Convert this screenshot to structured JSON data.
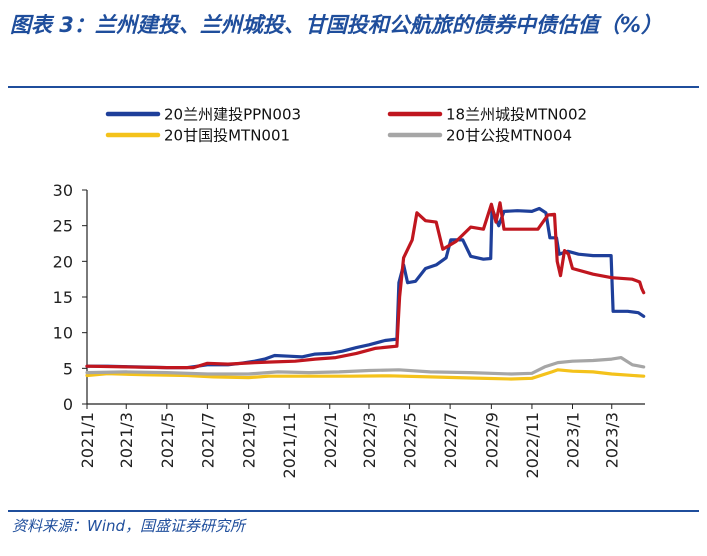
{
  "figure": {
    "title": "图表 3：兰州建投、兰州城投、甘国投和公航旅的债券中债估值（%）",
    "source": "资料来源：Wind，国盛证券研究所"
  },
  "chart_data": {
    "type": "line",
    "title": "",
    "xlabel": "",
    "ylabel": "",
    "ylim": [
      0,
      30
    ],
    "yticks": [
      0,
      5,
      10,
      15,
      20,
      25,
      30
    ],
    "xlim": [
      "2021-01-01",
      "2023-04-20"
    ],
    "xtick_labels": [
      "2021/1",
      "2021/3",
      "2021/5",
      "2021/7",
      "2021/9",
      "2021/11",
      "2022/1",
      "2022/3",
      "2022/5",
      "2022/7",
      "2022/9",
      "2022/11",
      "2023/1",
      "2023/3"
    ],
    "xtick_dates": [
      "2021-01-01",
      "2021-03-01",
      "2021-05-01",
      "2021-07-01",
      "2021-09-01",
      "2021-11-01",
      "2022-01-01",
      "2022-03-01",
      "2022-05-01",
      "2022-07-01",
      "2022-09-01",
      "2022-11-01",
      "2023-01-01",
      "2023-03-01"
    ],
    "grid": false,
    "legend_position": "top",
    "series": [
      {
        "name": "20兰州建投PPN003",
        "color": "#1e3f9a",
        "points": [
          [
            "2021-01-01",
            5.3
          ],
          [
            "2021-02-01",
            5.3
          ],
          [
            "2021-03-15",
            5.2
          ],
          [
            "2021-05-01",
            5.1
          ],
          [
            "2021-06-01",
            5.1
          ],
          [
            "2021-07-01",
            5.5
          ],
          [
            "2021-08-01",
            5.5
          ],
          [
            "2021-08-20",
            5.7
          ],
          [
            "2021-09-10",
            6.0
          ],
          [
            "2021-09-25",
            6.3
          ],
          [
            "2021-10-10",
            6.8
          ],
          [
            "2021-11-01",
            6.7
          ],
          [
            "2021-11-20",
            6.6
          ],
          [
            "2021-12-10",
            7.0
          ],
          [
            "2022-01-01",
            7.1
          ],
          [
            "2022-01-20",
            7.4
          ],
          [
            "2022-02-10",
            7.9
          ],
          [
            "2022-03-01",
            8.3
          ],
          [
            "2022-03-25",
            8.9
          ],
          [
            "2022-04-12",
            9.1
          ],
          [
            "2022-04-15",
            17.0
          ],
          [
            "2022-04-22",
            19.5
          ],
          [
            "2022-04-28",
            17.0
          ],
          [
            "2022-05-10",
            17.2
          ],
          [
            "2022-05-25",
            19.0
          ],
          [
            "2022-06-10",
            19.5
          ],
          [
            "2022-06-25",
            20.5
          ],
          [
            "2022-07-02",
            23.0
          ],
          [
            "2022-07-20",
            23.0
          ],
          [
            "2022-08-01",
            20.7
          ],
          [
            "2022-08-20",
            20.3
          ],
          [
            "2022-08-31",
            20.4
          ],
          [
            "2022-09-02",
            27.4
          ],
          [
            "2022-09-12",
            25.0
          ],
          [
            "2022-09-20",
            27.0
          ],
          [
            "2022-10-10",
            27.1
          ],
          [
            "2022-11-01",
            27.0
          ],
          [
            "2022-11-12",
            27.4
          ],
          [
            "2022-11-22",
            26.8
          ],
          [
            "2022-11-28",
            23.3
          ],
          [
            "2022-12-08",
            23.3
          ],
          [
            "2022-12-12",
            21.0
          ],
          [
            "2022-12-25",
            21.4
          ],
          [
            "2023-01-10",
            21.0
          ],
          [
            "2023-02-01",
            20.8
          ],
          [
            "2023-02-28",
            20.8
          ],
          [
            "2023-03-03",
            13.0
          ],
          [
            "2023-03-25",
            13.0
          ],
          [
            "2023-04-10",
            12.8
          ],
          [
            "2023-04-18",
            12.3
          ]
        ]
      },
      {
        "name": "18兰州城投MTN002",
        "color": "#c0161f",
        "points": [
          [
            "2021-01-01",
            5.3
          ],
          [
            "2021-03-01",
            5.2
          ],
          [
            "2021-05-01",
            5.1
          ],
          [
            "2021-06-10",
            5.1
          ],
          [
            "2021-07-01",
            5.7
          ],
          [
            "2021-08-01",
            5.6
          ],
          [
            "2021-09-10",
            5.8
          ],
          [
            "2021-10-10",
            5.9
          ],
          [
            "2021-11-10",
            6.0
          ],
          [
            "2021-12-10",
            6.3
          ],
          [
            "2022-01-10",
            6.5
          ],
          [
            "2022-02-10",
            7.1
          ],
          [
            "2022-03-10",
            7.8
          ],
          [
            "2022-04-01",
            8.0
          ],
          [
            "2022-04-12",
            8.1
          ],
          [
            "2022-04-16",
            15.0
          ],
          [
            "2022-04-22",
            20.5
          ],
          [
            "2022-05-05",
            23.0
          ],
          [
            "2022-05-12",
            26.8
          ],
          [
            "2022-05-25",
            25.7
          ],
          [
            "2022-06-10",
            25.5
          ],
          [
            "2022-06-20",
            21.7
          ],
          [
            "2022-07-10",
            22.8
          ],
          [
            "2022-08-01",
            24.8
          ],
          [
            "2022-08-20",
            24.5
          ],
          [
            "2022-09-01",
            28.0
          ],
          [
            "2022-09-08",
            25.5
          ],
          [
            "2022-09-14",
            28.2
          ],
          [
            "2022-09-20",
            24.5
          ],
          [
            "2022-10-20",
            24.5
          ],
          [
            "2022-11-10",
            24.5
          ],
          [
            "2022-11-25",
            26.5
          ],
          [
            "2022-12-05",
            26.6
          ],
          [
            "2022-12-09",
            20.0
          ],
          [
            "2022-12-14",
            18.0
          ],
          [
            "2022-12-20",
            21.5
          ],
          [
            "2022-12-26",
            21.0
          ],
          [
            "2023-01-01",
            19.0
          ],
          [
            "2023-02-01",
            18.2
          ],
          [
            "2023-03-01",
            17.7
          ],
          [
            "2023-04-01",
            17.5
          ],
          [
            "2023-04-12",
            17.1
          ],
          [
            "2023-04-15",
            16.2
          ],
          [
            "2023-04-18",
            15.6
          ]
        ]
      },
      {
        "name": "20甘国投MTN001",
        "color": "#f4c21b",
        "points": [
          [
            "2021-01-01",
            4.0
          ],
          [
            "2021-02-01",
            4.25
          ],
          [
            "2021-04-01",
            4.1
          ],
          [
            "2021-06-01",
            4.0
          ],
          [
            "2021-07-10",
            3.8
          ],
          [
            "2021-09-01",
            3.7
          ],
          [
            "2021-10-01",
            3.9
          ],
          [
            "2021-12-01",
            3.9
          ],
          [
            "2022-02-01",
            3.9
          ],
          [
            "2022-04-01",
            3.95
          ],
          [
            "2022-06-01",
            3.8
          ],
          [
            "2022-08-01",
            3.65
          ],
          [
            "2022-10-01",
            3.5
          ],
          [
            "2022-11-01",
            3.6
          ],
          [
            "2022-12-01",
            4.5
          ],
          [
            "2022-12-10",
            4.8
          ],
          [
            "2023-01-01",
            4.6
          ],
          [
            "2023-02-01",
            4.5
          ],
          [
            "2023-03-01",
            4.2
          ],
          [
            "2023-04-18",
            3.9
          ]
        ]
      },
      {
        "name": "20甘公投MTN004",
        "color": "#a6a6a6",
        "points": [
          [
            "2021-01-01",
            4.4
          ],
          [
            "2021-03-01",
            4.5
          ],
          [
            "2021-05-01",
            4.4
          ],
          [
            "2021-07-01",
            4.2
          ],
          [
            "2021-09-01",
            4.2
          ],
          [
            "2021-10-15",
            4.5
          ],
          [
            "2021-12-01",
            4.4
          ],
          [
            "2022-01-15",
            4.5
          ],
          [
            "2022-03-01",
            4.7
          ],
          [
            "2022-04-15",
            4.8
          ],
          [
            "2022-06-01",
            4.5
          ],
          [
            "2022-08-01",
            4.4
          ],
          [
            "2022-10-01",
            4.2
          ],
          [
            "2022-11-01",
            4.3
          ],
          [
            "2022-11-20",
            5.2
          ],
          [
            "2022-12-10",
            5.8
          ],
          [
            "2023-01-01",
            6.0
          ],
          [
            "2023-02-01",
            6.1
          ],
          [
            "2023-03-01",
            6.3
          ],
          [
            "2023-03-15",
            6.5
          ],
          [
            "2023-04-01",
            5.5
          ],
          [
            "2023-04-18",
            5.2
          ]
        ]
      }
    ]
  }
}
